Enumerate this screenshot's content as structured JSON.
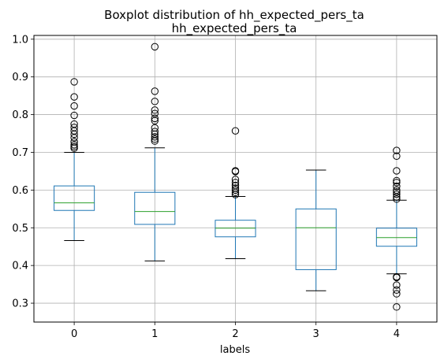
{
  "chart_data": {
    "type": "boxplot",
    "suptitle": "Boxplot distribution of hh_expected_pers_ta",
    "title": "hh_expected_pers_ta",
    "xlabel": "labels",
    "ylabel": "",
    "categories": [
      "0",
      "1",
      "2",
      "3",
      "4"
    ],
    "ylim": [
      0.25,
      1.01
    ],
    "yticks": [
      0.3,
      0.4,
      0.5,
      0.6,
      0.7,
      0.8,
      0.9,
      1.0
    ],
    "ytick_labels": [
      "0.3",
      "0.4",
      "0.5",
      "0.6",
      "0.7",
      "0.8",
      "0.9",
      "1.0"
    ],
    "grid": true,
    "colors": {
      "box": "#1f77b4",
      "median": "#2ca02c",
      "whisker": "#1f77b4",
      "cap": "#000000",
      "flier": "#000000",
      "grid": "#b0b0b0"
    },
    "boxes": [
      {
        "label": "0",
        "whislo": 0.466,
        "q1": 0.546,
        "med": 0.566,
        "q3": 0.611,
        "whishi": 0.7,
        "fliers": [
          0.887,
          0.847,
          0.823,
          0.798,
          0.775,
          0.766,
          0.757,
          0.748,
          0.739,
          0.728,
          0.72,
          0.715,
          0.711
        ]
      },
      {
        "label": "1",
        "whislo": 0.412,
        "q1": 0.509,
        "med": 0.543,
        "q3": 0.594,
        "whishi": 0.712,
        "fliers": [
          0.98,
          0.862,
          0.835,
          0.812,
          0.803,
          0.79,
          0.784,
          0.765,
          0.755,
          0.748,
          0.741,
          0.735,
          0.73
        ]
      },
      {
        "label": "2",
        "whislo": 0.418,
        "q1": 0.476,
        "med": 0.499,
        "q3": 0.52,
        "whishi": 0.583,
        "fliers": [
          0.757,
          0.651,
          0.649,
          0.628,
          0.62,
          0.612,
          0.605,
          0.6,
          0.594,
          0.588
        ]
      },
      {
        "label": "3",
        "whislo": 0.333,
        "q1": 0.389,
        "med": 0.5,
        "q3": 0.55,
        "whishi": 0.653,
        "fliers": []
      },
      {
        "label": "4",
        "whislo": 0.378,
        "q1": 0.451,
        "med": 0.474,
        "q3": 0.499,
        "whishi": 0.573,
        "fliers": [
          0.705,
          0.69,
          0.651,
          0.625,
          0.62,
          0.61,
          0.6,
          0.595,
          0.589,
          0.582,
          0.576,
          0.37,
          0.368,
          0.348,
          0.335,
          0.325,
          0.29
        ]
      }
    ]
  }
}
